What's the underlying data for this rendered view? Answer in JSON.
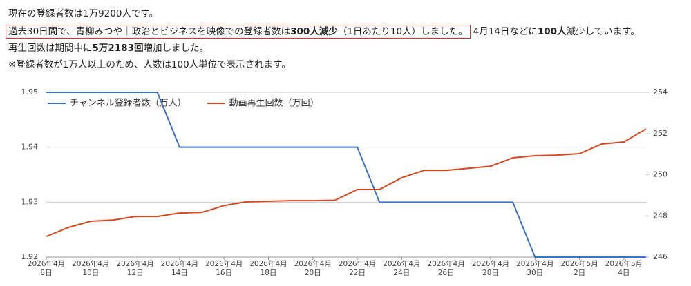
{
  "summary": {
    "lines": [
      [
        "現在の登録者数は1万9200人です。"
      ],
      [
        "過去30日間で、青柳みつや｜政治とビジネスを映像での登録者数は",
        "300人減少",
        "（1日あたり10人）しました。",
        "4月14日などに",
        "100人",
        "減少しています。"
      ],
      [
        "再生回数は期間中に",
        "5万2183回",
        "増加しました。"
      ],
      [
        "※登録者数が1万人以上のため、人数は100人単位で表示されます。"
      ]
    ]
  },
  "chart_data": {
    "type": "line",
    "categories": [
      "2026年4月\n8日",
      null,
      "2026年4月\n10日",
      null,
      "2026年4月\n12日",
      null,
      "2026年4月\n14日",
      null,
      "2026年4月\n16日",
      null,
      "2026年4月\n18日",
      null,
      "2026年4月\n20日",
      null,
      "2026年4月\n22日",
      null,
      "2026年4月\n24日",
      null,
      "2026年4月\n26日",
      null,
      "2026年4月\n28日",
      null,
      "2026年4月\n30日",
      null,
      "2026年5月\n2日",
      null,
      "2026年5月\n4日",
      null
    ],
    "series": [
      {
        "name": "チャンネル登録者数（万人）",
        "color": "#3a6fc9",
        "values": [
          1.95,
          1.95,
          1.95,
          1.95,
          1.95,
          1.95,
          1.94,
          1.94,
          1.94,
          1.94,
          1.94,
          1.94,
          1.94,
          1.94,
          1.94,
          1.93,
          1.93,
          1.93,
          1.93,
          1.93,
          1.93,
          1.93,
          1.92,
          1.92,
          1.92,
          1.92,
          1.92,
          1.92
        ]
      },
      {
        "name": "動画再生回数（万回）",
        "color": "#d6471f",
        "axis": "y2",
        "values": [
          247.0,
          247.44,
          247.74,
          247.8,
          247.97,
          247.97,
          248.14,
          248.17,
          248.5,
          248.68,
          248.71,
          248.74,
          248.74,
          248.76,
          249.28,
          249.28,
          249.85,
          250.21,
          250.21,
          250.31,
          250.41,
          250.82,
          250.92,
          250.95,
          251.02,
          251.49,
          251.59,
          252.22
        ]
      }
    ],
    "ylim": [
      1.92,
      1.95
    ],
    "yticks": [
      1.92,
      1.93,
      1.94,
      1.95
    ],
    "y2lim": [
      246,
      254
    ],
    "y2ticks": [
      246,
      248,
      250,
      252,
      254
    ],
    "grid": true,
    "legend": "upper left"
  }
}
